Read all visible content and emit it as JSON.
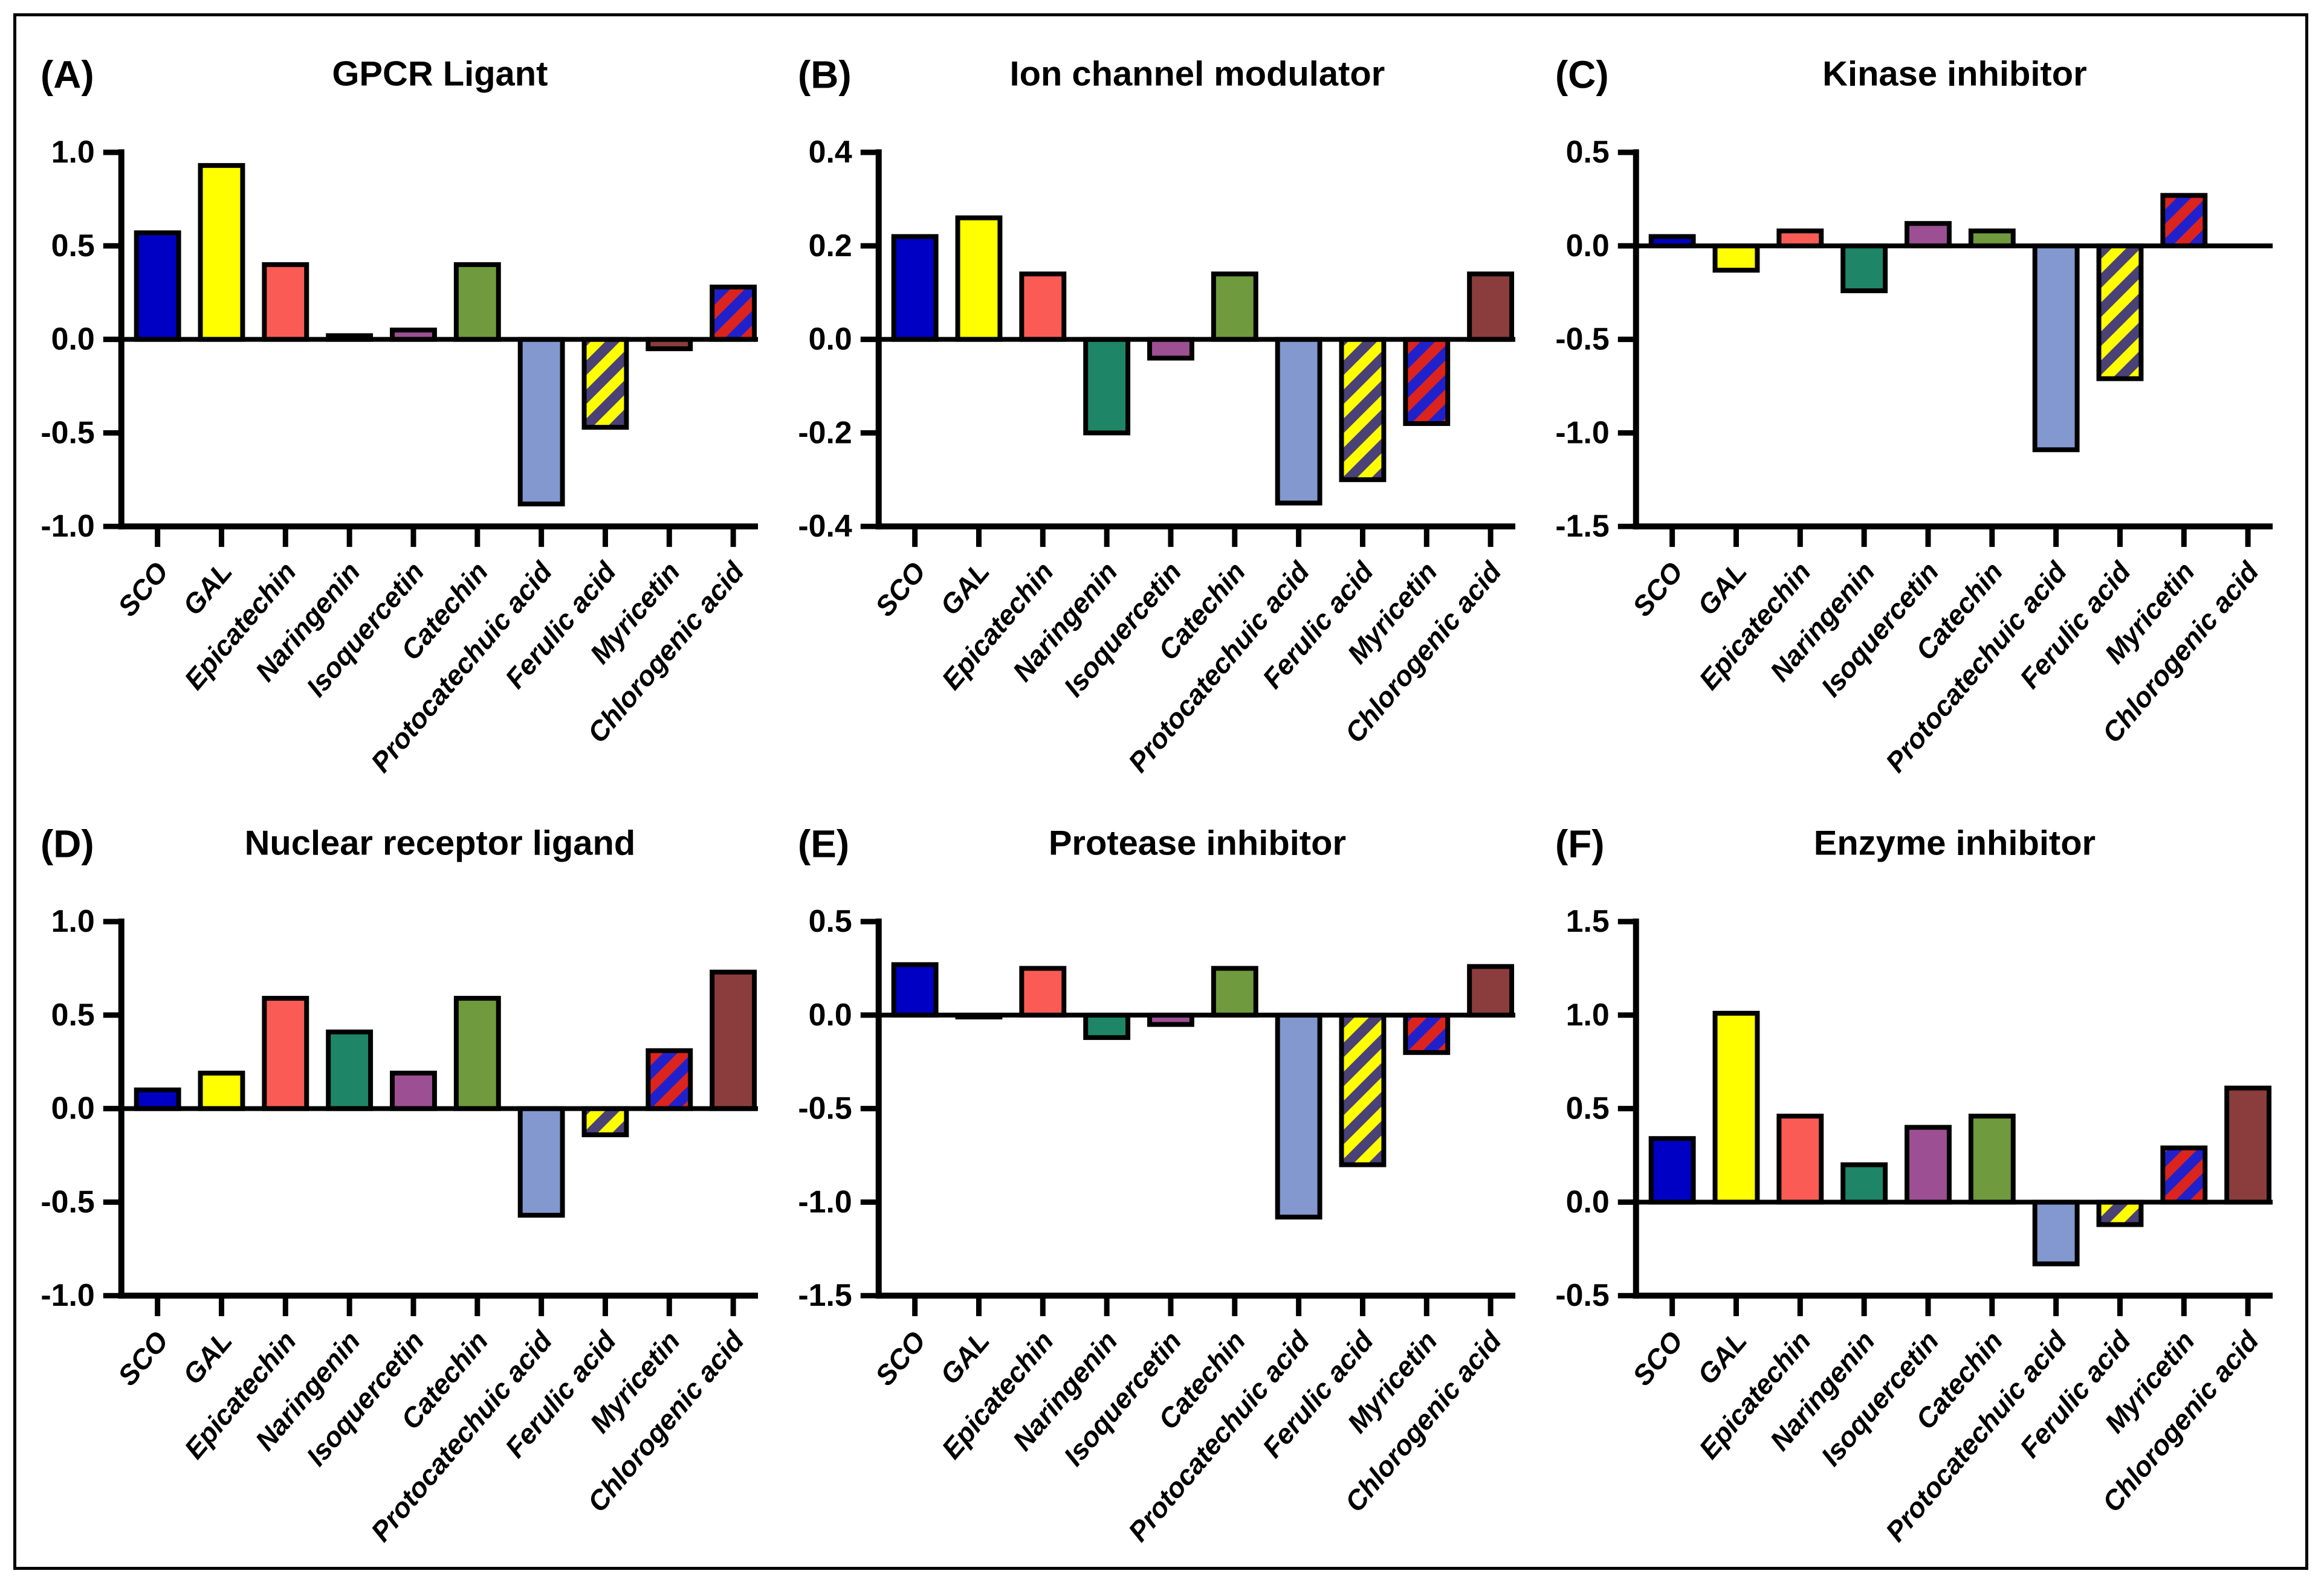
{
  "figure": {
    "background": "#FFFFFF",
    "frame_border_color": "#000000",
    "layout": "2 rows x 3 columns of bar charts",
    "legend": "none",
    "grid_lines": "off"
  },
  "categories": [
    "SCO",
    "GAL",
    "Epicatechin",
    "Naringenin",
    "Isoquercetin",
    "Catechin",
    "Protocatechuic acid",
    "Ferulic acid",
    "Myricetin",
    "Chlorogenic acid"
  ],
  "palette": {
    "blue": "#0000C4",
    "yellow": "#FFFF00",
    "salmon": "#FA5C55",
    "teal": "#1E8567",
    "purple": "#9D4F94",
    "olive": "#6F9A3D",
    "periwinkle": "#8298CF",
    "maroon": "#8B3D3D",
    "stripe_yellow_base": "#FFFF00",
    "stripe_yellow_stripe": "#4A4177",
    "stripe_red_base": "#DC241E",
    "stripe_red_stripe": "#2121CC",
    "bar_edge": "#000000",
    "axis": "#000000"
  },
  "chart_data": [
    {
      "type": "bar",
      "letter": "(A)",
      "title": "GPCR Ligant",
      "categories": [
        "SCO",
        "GAL",
        "Epicatechin",
        "Naringenin",
        "Isoquercetin",
        "Catechin",
        "Protocatechuic acid",
        "Ferulic acid",
        "Myricetin",
        "Chlorogenic acid"
      ],
      "values": [
        0.57,
        0.93,
        0.4,
        0.02,
        0.05,
        0.4,
        -0.88,
        -0.47,
        -0.05,
        0.28
      ],
      "bar_styles": [
        "blue",
        "yellow",
        "salmon",
        "teal",
        "purple",
        "olive",
        "periwinkle",
        "stripe_yellow",
        "maroon",
        "stripe_red"
      ],
      "ylim": [
        -1.0,
        1.0
      ],
      "yticks": [
        "1.0",
        "0.5",
        "0.0",
        "-0.5",
        "-1.0"
      ],
      "xlabel": "",
      "ylabel": ""
    },
    {
      "type": "bar",
      "letter": "(B)",
      "title": "Ion channel modulator",
      "categories": [
        "SCO",
        "GAL",
        "Epicatechin",
        "Naringenin",
        "Isoquercetin",
        "Catechin",
        "Protocatechuic acid",
        "Ferulic acid",
        "Myricetin",
        "Chlorogenic acid"
      ],
      "values": [
        0.22,
        0.26,
        0.14,
        -0.2,
        -0.04,
        0.14,
        -0.35,
        -0.3,
        -0.18,
        0.14
      ],
      "bar_styles": [
        "blue",
        "yellow",
        "salmon",
        "teal",
        "purple",
        "olive",
        "periwinkle",
        "stripe_yellow",
        "stripe_red",
        "maroon"
      ],
      "ylim": [
        -0.4,
        0.4
      ],
      "yticks": [
        "0.4",
        "0.2",
        "0.0",
        "-0.2",
        "-0.4"
      ],
      "xlabel": "",
      "ylabel": ""
    },
    {
      "type": "bar",
      "letter": "(C)",
      "title": "Kinase inhibitor",
      "categories": [
        "SCO",
        "GAL",
        "Epicatechin",
        "Naringenin",
        "Isoquercetin",
        "Catechin",
        "Protocatechuic acid",
        "Ferulic acid",
        "Myricetin",
        "Chlorogenic acid"
      ],
      "values": [
        0.05,
        -0.13,
        0.08,
        -0.24,
        0.12,
        0.08,
        -1.09,
        -0.71,
        0.27,
        0.0
      ],
      "bar_styles": [
        "blue",
        "yellow",
        "salmon",
        "teal",
        "purple",
        "olive",
        "periwinkle",
        "stripe_yellow",
        "stripe_red",
        "maroon"
      ],
      "ylim": [
        -1.5,
        0.5
      ],
      "yticks": [
        "0.5",
        "0.0",
        "-0.5",
        "-1.0",
        "-1.5"
      ],
      "xlabel": "",
      "ylabel": ""
    },
    {
      "type": "bar",
      "letter": "(D)",
      "title": "Nuclear receptor ligand",
      "categories": [
        "SCO",
        "GAL",
        "Epicatechin",
        "Naringenin",
        "Isoquercetin",
        "Catechin",
        "Protocatechuic acid",
        "Ferulic acid",
        "Myricetin",
        "Chlorogenic acid"
      ],
      "values": [
        0.1,
        0.19,
        0.59,
        0.41,
        0.19,
        0.59,
        -0.57,
        -0.14,
        0.31,
        0.73
      ],
      "bar_styles": [
        "blue",
        "yellow",
        "salmon",
        "teal",
        "purple",
        "olive",
        "periwinkle",
        "stripe_yellow",
        "stripe_red",
        "maroon"
      ],
      "ylim": [
        -1.0,
        1.0
      ],
      "yticks": [
        "1.0",
        "0.5",
        "0.0",
        "-0.5",
        "-1.0"
      ],
      "xlabel": "",
      "ylabel": ""
    },
    {
      "type": "bar",
      "letter": "(E)",
      "title": "Protease inhibitor",
      "categories": [
        "SCO",
        "GAL",
        "Epicatechin",
        "Naringenin",
        "Isoquercetin",
        "Catechin",
        "Protocatechuic acid",
        "Ferulic acid",
        "Myricetin",
        "Chlorogenic acid"
      ],
      "values": [
        0.27,
        -0.01,
        0.25,
        -0.12,
        -0.05,
        0.25,
        -1.08,
        -0.8,
        -0.2,
        0.26
      ],
      "bar_styles": [
        "blue",
        "yellow",
        "salmon",
        "teal",
        "purple",
        "olive",
        "periwinkle",
        "stripe_yellow",
        "stripe_red",
        "maroon"
      ],
      "ylim": [
        -1.5,
        0.5
      ],
      "yticks": [
        "0.5",
        "0.0",
        "-0.5",
        "-1.0",
        "-1.5"
      ],
      "xlabel": "",
      "ylabel": ""
    },
    {
      "type": "bar",
      "letter": "(F)",
      "title": "Enzyme inhibitor",
      "categories": [
        "SCO",
        "GAL",
        "Epicatechin",
        "Naringenin",
        "Isoquercetin",
        "Catechin",
        "Protocatechuic acid",
        "Ferulic acid",
        "Myricetin",
        "Chlorogenic acid"
      ],
      "values": [
        0.34,
        1.01,
        0.46,
        0.2,
        0.4,
        0.46,
        -0.33,
        -0.12,
        0.29,
        0.61
      ],
      "bar_styles": [
        "blue",
        "yellow",
        "salmon",
        "teal",
        "purple",
        "olive",
        "periwinkle",
        "stripe_yellow",
        "stripe_red",
        "maroon"
      ],
      "ylim": [
        -0.5,
        1.5
      ],
      "yticks": [
        "1.5",
        "1.0",
        "0.5",
        "0.0",
        "-0.5"
      ],
      "xlabel": "",
      "ylabel": ""
    }
  ]
}
